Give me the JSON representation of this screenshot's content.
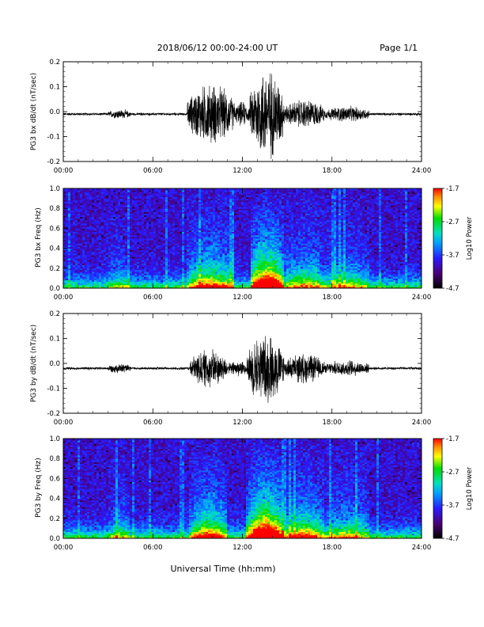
{
  "header": {
    "title": "2018/06/12  00:00-24:00 UT",
    "page": "Page 1/1"
  },
  "footer": {
    "xlabel": "Universal Time (hh:mm)"
  },
  "x_ticks": [
    "00:00",
    "06:00",
    "12:00",
    "18:00",
    "24:00"
  ],
  "chart_data": [
    {
      "type": "line",
      "ylabel": "PG3 bx dB/dt (nT/sec)",
      "xlim": [
        0,
        24
      ],
      "ylim": [
        -0.2,
        0.2
      ],
      "yticks": [
        "0.2",
        "0.1",
        "0.0",
        "-0.1",
        "-0.2"
      ],
      "baseline": -0.01,
      "activity": [
        {
          "start": 3.0,
          "end": 4.5,
          "amp": 0.015
        },
        {
          "start": 8.3,
          "end": 11.5,
          "amp": 0.13
        },
        {
          "start": 11.5,
          "end": 12.5,
          "amp": 0.05
        },
        {
          "start": 12.5,
          "end": 14.8,
          "amp": 0.2
        },
        {
          "start": 14.8,
          "end": 17.5,
          "amp": 0.06
        },
        {
          "start": 17.5,
          "end": 20.5,
          "amp": 0.03
        }
      ]
    },
    {
      "type": "heatmap",
      "ylabel": "PG3 bx Freq (Hz)",
      "xlim": [
        0,
        24
      ],
      "ylim": [
        0.0,
        1.0
      ],
      "yticks": [
        "1.0",
        "0.8",
        "0.6",
        "0.4",
        "0.2",
        "0.0"
      ],
      "colorbar": {
        "label": "Log10 Power",
        "ticks": [
          "-1.7",
          "-2.7",
          "-3.7",
          "-4.7"
        ],
        "range": [
          -4.7,
          -1.7
        ]
      },
      "activity": [
        {
          "start": 3.0,
          "end": 4.5,
          "level": 0.15
        },
        {
          "start": 8.3,
          "end": 11.5,
          "level": 0.45
        },
        {
          "start": 12.5,
          "end": 14.8,
          "level": 0.8
        },
        {
          "start": 14.8,
          "end": 17.5,
          "level": 0.35
        },
        {
          "start": 17.5,
          "end": 20.5,
          "level": 0.25
        }
      ]
    },
    {
      "type": "line",
      "ylabel": "PG3 by dB/dt (nT/sec)",
      "xlim": [
        0,
        24
      ],
      "ylim": [
        -0.2,
        0.2
      ],
      "yticks": [
        "0.2",
        "0.1",
        "0.0",
        "-0.1",
        "-0.2"
      ],
      "baseline": -0.02,
      "activity": [
        {
          "start": 3.0,
          "end": 4.5,
          "amp": 0.015
        },
        {
          "start": 8.5,
          "end": 11.0,
          "amp": 0.08
        },
        {
          "start": 11.0,
          "end": 12.3,
          "amp": 0.03
        },
        {
          "start": 12.3,
          "end": 14.8,
          "amp": 0.15
        },
        {
          "start": 14.8,
          "end": 17.5,
          "amp": 0.06
        },
        {
          "start": 17.5,
          "end": 20.5,
          "amp": 0.03
        }
      ]
    },
    {
      "type": "heatmap",
      "ylabel": "PG3 by Freq (Hz)",
      "xlim": [
        0,
        24
      ],
      "ylim": [
        0.0,
        1.0
      ],
      "yticks": [
        "1.0",
        "0.8",
        "0.6",
        "0.4",
        "0.2",
        "0.0"
      ],
      "colorbar": {
        "label": "Log10 Power",
        "ticks": [
          "-1.7",
          "-2.7",
          "-3.7",
          "-4.7"
        ],
        "range": [
          -4.7,
          -1.7
        ]
      },
      "activity": [
        {
          "start": 3.0,
          "end": 4.5,
          "level": 0.2
        },
        {
          "start": 8.5,
          "end": 11.0,
          "level": 0.5
        },
        {
          "start": 12.3,
          "end": 14.8,
          "level": 0.85
        },
        {
          "start": 14.8,
          "end": 17.5,
          "level": 0.45
        },
        {
          "start": 17.5,
          "end": 20.5,
          "level": 0.3
        }
      ]
    }
  ]
}
